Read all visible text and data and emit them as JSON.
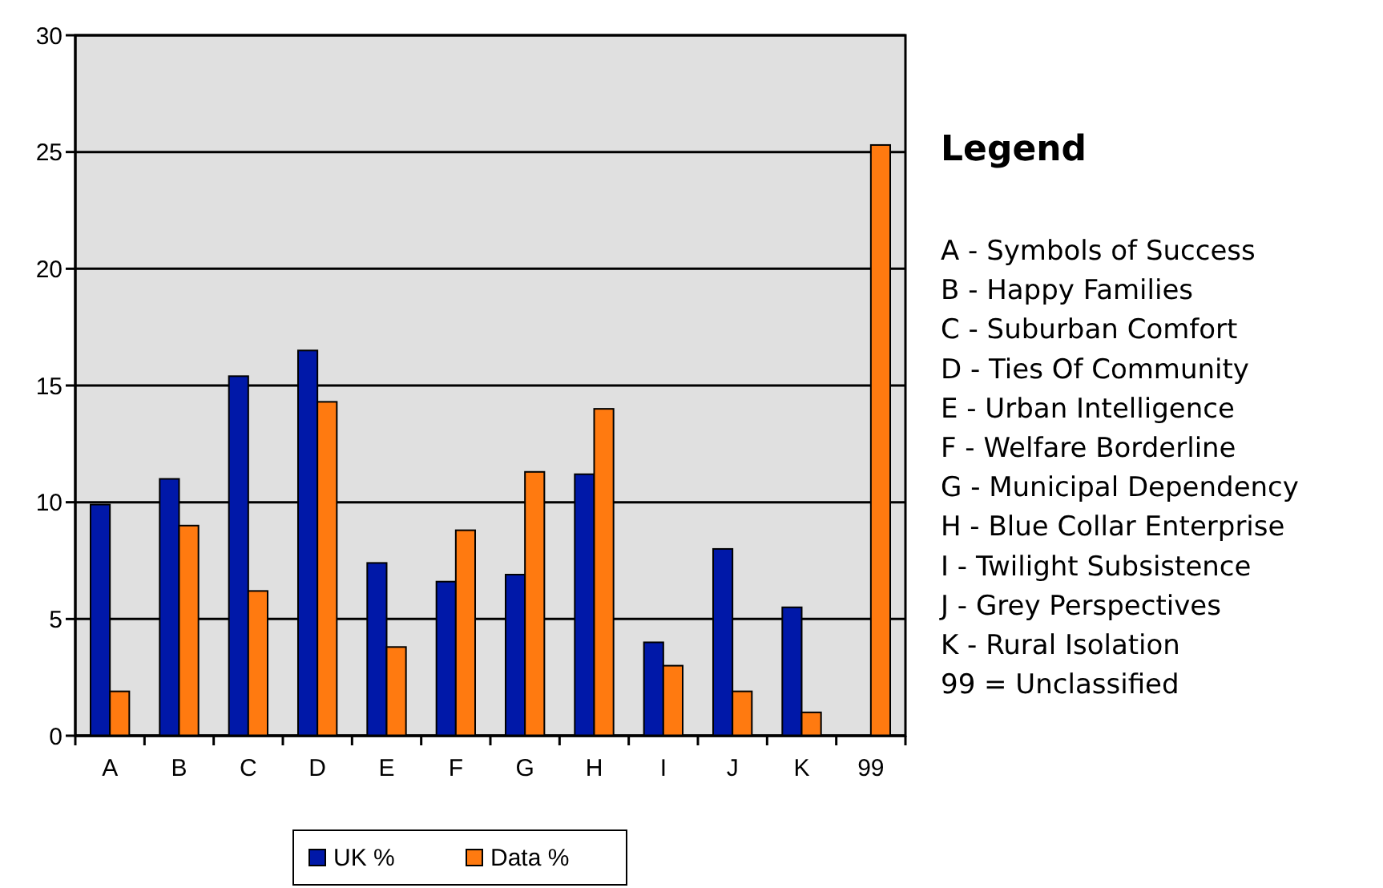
{
  "chart_data": {
    "type": "bar",
    "categories": [
      "A",
      "B",
      "C",
      "D",
      "E",
      "F",
      "G",
      "H",
      "I",
      "J",
      "K",
      "99"
    ],
    "series": [
      {
        "name": "UK %",
        "color": "#0018a8",
        "values": [
          9.9,
          11.0,
          15.4,
          16.5,
          7.4,
          6.6,
          6.9,
          11.2,
          4.0,
          8.0,
          5.5,
          null
        ]
      },
      {
        "name": "Data %",
        "color": "#ff7a10",
        "values": [
          1.9,
          9.0,
          6.2,
          14.3,
          3.8,
          8.8,
          11.3,
          14.0,
          3.0,
          1.9,
          1.0,
          25.3
        ]
      }
    ],
    "ylim": [
      0,
      30
    ],
    "yticks": [
      0,
      5,
      10,
      15,
      20,
      25,
      30
    ],
    "grid": "y",
    "legend": "bottom",
    "annotations": [
      "Legend",
      "A - Symbols of Success",
      "B - Happy Families",
      "C - Suburban Comfort",
      "D - Ties Of Community",
      "E - Urban Intelligence",
      "F - Welfare Borderline",
      "G - Municipal Dependency",
      "H - Blue Collar Enterprise",
      "I - Twilight Subsistence",
      "J - Grey Perspectives",
      "K - Rural Isolation",
      "99 = Unclassified"
    ]
  }
}
